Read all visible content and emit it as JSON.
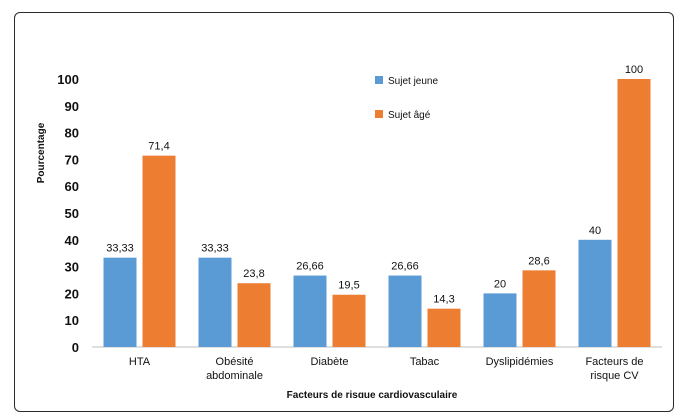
{
  "chart_data": {
    "type": "bar",
    "title": "",
    "xlabel": "Facteurs de risque cardiovasculaire",
    "ylabel": "Pourcentage",
    "ylim": [
      0,
      100
    ],
    "yticks": [
      "0",
      "10",
      "20",
      "30",
      "40",
      "50",
      "60",
      "70",
      "80",
      "90",
      "100"
    ],
    "categories": [
      [
        "HTA"
      ],
      [
        "Obésité",
        "abdominale"
      ],
      [
        "Diabète"
      ],
      [
        "Tabac"
      ],
      [
        "Dyslipidémies"
      ],
      [
        "Facteurs de",
        "risque CV"
      ]
    ],
    "series": [
      {
        "name": "Sujet jeune",
        "color": "#5B9BD5",
        "values": [
          33.33,
          33.33,
          26.66,
          26.66,
          20,
          40
        ],
        "labels": [
          "33,33",
          "33,33",
          "26,66",
          "26,66",
          "20",
          "40"
        ]
      },
      {
        "name": "Sujet âgé",
        "color": "#ED7D31",
        "values": [
          71.4,
          23.8,
          19.5,
          14.3,
          28.6,
          100
        ],
        "labels": [
          "71,4",
          "23,8",
          "19,5",
          "14,3",
          "28,6",
          "100"
        ]
      }
    ],
    "grid": false,
    "legend_position": "top-center"
  }
}
